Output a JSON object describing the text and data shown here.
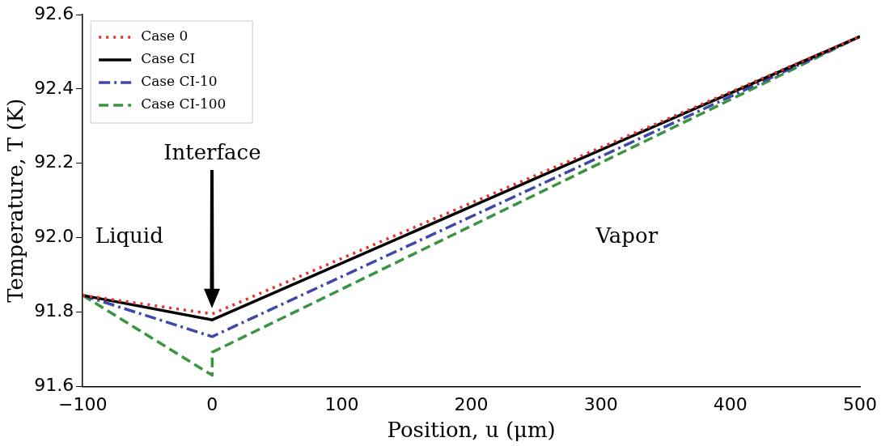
{
  "chart_data": {
    "type": "line",
    "xlabel": "Position, u (μm)",
    "ylabel": "Temperature, T (K)",
    "series": [
      {
        "name": "Case 0",
        "color": "#e8302a",
        "line_style": "dotted",
        "x": [
          -100,
          0,
          500
        ],
        "values": [
          91.845,
          91.795,
          92.541
        ]
      },
      {
        "name": "Case CI",
        "color": "#000000",
        "line_style": "solid",
        "x": [
          -100,
          0,
          500
        ],
        "values": [
          91.845,
          91.779,
          92.541
        ]
      },
      {
        "name": "Case CI-10",
        "color": "#3f48a8",
        "line_style": "dashdot",
        "x": [
          -100,
          0,
          500
        ],
        "values": [
          91.845,
          91.734,
          92.541
        ]
      },
      {
        "name": "Case CI-100",
        "color": "#3a9440",
        "line_style": "dashed",
        "x": [
          -100,
          0,
          0,
          500
        ],
        "values": [
          91.845,
          91.63,
          91.692,
          92.541
        ]
      }
    ],
    "xlim": [
      -100,
      500
    ],
    "xticks": [
      {
        "value": -100,
        "label": "−100"
      },
      0,
      100,
      200,
      300,
      400,
      500
    ],
    "ylim": [
      91.6,
      92.6
    ],
    "yticks": [
      {
        "value": 91.6,
        "label": "91.6"
      },
      {
        "value": 91.8,
        "label": "91.8"
      },
      {
        "value": 92.0,
        "label": "92.0"
      },
      {
        "value": 92.2,
        "label": "92.2"
      },
      {
        "value": 92.4,
        "label": "92.4"
      },
      {
        "value": 92.6,
        "label": "92.6"
      }
    ],
    "grid": false,
    "legend": "top left",
    "marker": "none",
    "annotations": [
      "Interface",
      "Liquid",
      "Vapor"
    ]
  }
}
